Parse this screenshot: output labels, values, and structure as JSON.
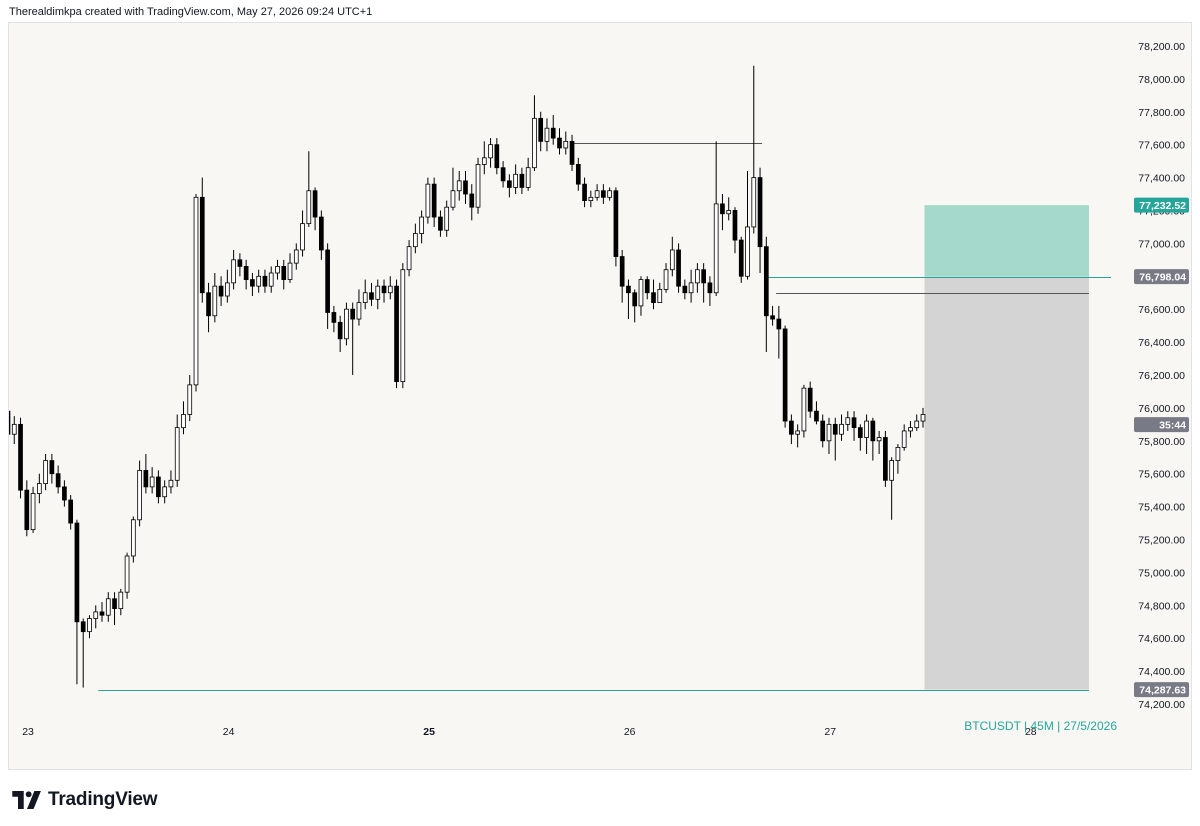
{
  "header": {
    "text": "Therealdimkpa created with TradingView.com, May 27, 2026 09:24 UTC+1"
  },
  "brand": {
    "name": "TradingView",
    "logo_icon": "tradingview-logo-icon"
  },
  "colors": {
    "up": "#ffffff",
    "down": "#000000",
    "wick": "#000000",
    "profit_zone": "#a5d9cc",
    "stop_zone": "#d4d4d4",
    "accent": "#26a69a",
    "price_badge_gray": "#787b86",
    "target_badge": "#26a69a",
    "background": "#f8f7f3"
  },
  "chart_data": {
    "type": "candlestick",
    "symbol_caption": "BTCUSDT | 45M | 27/5/2026",
    "y_range": [
      74100,
      78300
    ],
    "y_ticks": [
      74200,
      74400,
      74600,
      74800,
      75000,
      75200,
      75400,
      75600,
      75800,
      76000,
      76200,
      76400,
      76600,
      76800,
      77000,
      77200,
      77400,
      77600,
      77800,
      78000,
      78200
    ],
    "y_tick_labels": [
      "74,200.00",
      "74,400.00",
      "74,600.00",
      "74,800.00",
      "75,000.00",
      "75,200.00",
      "75,400.00",
      "75,600.00",
      "75,800.00",
      "76,000.00",
      "76,200.00",
      "76,400.00",
      "76,600.00",
      "76,800.00",
      "77,000.00",
      "77,200.00",
      "77,400.00",
      "77,600.00",
      "77,800.00",
      "78,000.00",
      "78,200.00"
    ],
    "x_range": [
      22.9,
      28.4
    ],
    "x_ticks": [
      {
        "day": 23,
        "label": "23",
        "bold": false
      },
      {
        "day": 24,
        "label": "24",
        "bold": false
      },
      {
        "day": 25,
        "label": "25",
        "bold": true
      },
      {
        "day": 26,
        "label": "26",
        "bold": false
      },
      {
        "day": 27,
        "label": "27",
        "bold": false
      },
      {
        "day": 28,
        "label": "28",
        "bold": false
      }
    ],
    "candles_start_day": 22.9,
    "candles_per_day": 32,
    "candles": [
      [
        75980,
        75840,
        76050,
        75780
      ],
      [
        75840,
        75900,
        75950,
        75780
      ],
      [
        75900,
        75500,
        75940,
        75450
      ],
      [
        75500,
        75260,
        75560,
        75220
      ],
      [
        75260,
        75480,
        75520,
        75240
      ],
      [
        75480,
        75540,
        75600,
        75420
      ],
      [
        75540,
        75680,
        75720,
        75500
      ],
      [
        75680,
        75600,
        75720,
        75540
      ],
      [
        75600,
        75520,
        75650,
        75480
      ],
      [
        75520,
        75440,
        75560,
        75400
      ],
      [
        75440,
        75300,
        75470,
        75260
      ],
      [
        75300,
        74700,
        75320,
        74320
      ],
      [
        74700,
        74640,
        74720,
        74300
      ],
      [
        74640,
        74720,
        74740,
        74600
      ],
      [
        74720,
        74760,
        74800,
        74660
      ],
      [
        74760,
        74740,
        74820,
        74700
      ],
      [
        74740,
        74840,
        74880,
        74700
      ],
      [
        74840,
        74780,
        74880,
        74680
      ],
      [
        74780,
        74880,
        74900,
        74740
      ],
      [
        74880,
        75100,
        75120,
        74840
      ],
      [
        75100,
        75320,
        75340,
        75060
      ],
      [
        75320,
        75620,
        75680,
        75280
      ],
      [
        75620,
        75520,
        75720,
        75480
      ],
      [
        75520,
        75580,
        75640,
        75480
      ],
      [
        75580,
        75460,
        75620,
        75420
      ],
      [
        75460,
        75520,
        75560,
        75420
      ],
      [
        75520,
        75560,
        75620,
        75480
      ],
      [
        75560,
        75880,
        75960,
        75520
      ],
      [
        75880,
        75960,
        76040,
        75840
      ],
      [
        75960,
        76140,
        76200,
        75920
      ],
      [
        76140,
        77280,
        77300,
        76100
      ],
      [
        77280,
        76700,
        77400,
        76640
      ],
      [
        76700,
        76560,
        76760,
        76460
      ],
      [
        76560,
        76740,
        76820,
        76520
      ],
      [
        76740,
        76680,
        76800,
        76620
      ],
      [
        76680,
        76760,
        76840,
        76640
      ],
      [
        76760,
        76900,
        76960,
        76720
      ],
      [
        76900,
        76860,
        76940,
        76800
      ],
      [
        76860,
        76780,
        76900,
        76720
      ],
      [
        76780,
        76740,
        76820,
        76680
      ],
      [
        76740,
        76800,
        76840,
        76700
      ],
      [
        76800,
        76740,
        76840,
        76700
      ],
      [
        76740,
        76820,
        76860,
        76700
      ],
      [
        76820,
        76860,
        76900,
        76780
      ],
      [
        76860,
        76780,
        76900,
        76720
      ],
      [
        76780,
        76880,
        76940,
        76760
      ],
      [
        76880,
        76960,
        77000,
        76840
      ],
      [
        76960,
        77120,
        77200,
        76920
      ],
      [
        77120,
        77320,
        77560,
        77100
      ],
      [
        77320,
        77160,
        77340,
        77080
      ],
      [
        77160,
        76960,
        77200,
        76900
      ],
      [
        76960,
        76580,
        77000,
        76480
      ],
      [
        76580,
        76520,
        76620,
        76460
      ],
      [
        76520,
        76420,
        76560,
        76340
      ],
      [
        76420,
        76600,
        76640,
        76380
      ],
      [
        76600,
        76540,
        76640,
        76200
      ],
      [
        76540,
        76640,
        76720,
        76500
      ],
      [
        76640,
        76700,
        76780,
        76600
      ],
      [
        76700,
        76660,
        76760,
        76620
      ],
      [
        76660,
        76740,
        76780,
        76600
      ],
      [
        76740,
        76700,
        76780,
        76640
      ],
      [
        76700,
        76740,
        76800,
        76660
      ],
      [
        76740,
        76160,
        76780,
        76120
      ],
      [
        76160,
        76840,
        76880,
        76120
      ],
      [
        76840,
        76980,
        77020,
        76800
      ],
      [
        76980,
        77060,
        77120,
        76940
      ],
      [
        77060,
        77160,
        77200,
        77000
      ],
      [
        77160,
        77360,
        77400,
        77120
      ],
      [
        77360,
        77160,
        77400,
        77100
      ],
      [
        77160,
        77080,
        77200,
        77040
      ],
      [
        77080,
        77220,
        77260,
        77040
      ],
      [
        77220,
        77320,
        77460,
        77200
      ],
      [
        77320,
        77380,
        77440,
        77260
      ],
      [
        77380,
        77300,
        77440,
        77240
      ],
      [
        77300,
        77220,
        77360,
        77140
      ],
      [
        77220,
        77480,
        77520,
        77180
      ],
      [
        77480,
        77520,
        77620,
        77420
      ],
      [
        77520,
        77600,
        77640,
        77460
      ],
      [
        77600,
        77460,
        77640,
        77420
      ],
      [
        77460,
        77380,
        77500,
        77340
      ],
      [
        77380,
        77340,
        77420,
        77280
      ],
      [
        77340,
        77420,
        77480,
        77300
      ],
      [
        77420,
        77340,
        77460,
        77300
      ],
      [
        77340,
        77460,
        77520,
        77320
      ],
      [
        77460,
        77760,
        77900,
        77440
      ],
      [
        77760,
        77620,
        77800,
        77560
      ],
      [
        77620,
        77700,
        77760,
        77560
      ],
      [
        77700,
        77640,
        77780,
        77600
      ],
      [
        77640,
        77580,
        77700,
        77540
      ],
      [
        77580,
        77620,
        77680,
        77540
      ],
      [
        77620,
        77480,
        77660,
        77440
      ],
      [
        77480,
        77360,
        77520,
        77320
      ],
      [
        77360,
        77260,
        77400,
        77220
      ],
      [
        77260,
        77280,
        77320,
        77220
      ],
      [
        77280,
        77320,
        77360,
        77260
      ],
      [
        77320,
        77280,
        77360,
        77240
      ],
      [
        77280,
        77320,
        77340,
        77260
      ],
      [
        77320,
        76920,
        77340,
        76860
      ],
      [
        76920,
        76740,
        76960,
        76640
      ],
      [
        76740,
        76700,
        76780,
        76540
      ],
      [
        76700,
        76620,
        76720,
        76520
      ],
      [
        76620,
        76780,
        76800,
        76560
      ],
      [
        76780,
        76700,
        76800,
        76660
      ],
      [
        76700,
        76640,
        76780,
        76600
      ],
      [
        76640,
        76720,
        76760,
        76640
      ],
      [
        76720,
        76840,
        76880,
        76700
      ],
      [
        76840,
        76960,
        77040,
        76800
      ],
      [
        76960,
        76740,
        77000,
        76700
      ],
      [
        76740,
        76700,
        76780,
        76660
      ],
      [
        76700,
        76760,
        76840,
        76640
      ],
      [
        76760,
        76840,
        76880,
        76700
      ],
      [
        76840,
        76760,
        76880,
        76640
      ],
      [
        76760,
        76700,
        76800,
        76620
      ],
      [
        76700,
        77240,
        77620,
        76680
      ],
      [
        77240,
        77180,
        77300,
        77080
      ],
      [
        77180,
        77200,
        77280,
        77140
      ],
      [
        77200,
        77020,
        77220,
        76940
      ],
      [
        77020,
        76800,
        77040,
        76760
      ],
      [
        76800,
        77100,
        77440,
        76780
      ],
      [
        77100,
        77400,
        78080,
        77060
      ],
      [
        77400,
        76980,
        77460,
        76820
      ],
      [
        76980,
        76560,
        77040,
        76340
      ],
      [
        76560,
        76540,
        76620,
        76500
      ],
      [
        76540,
        76480,
        76620,
        76300
      ],
      [
        76480,
        75920,
        76500,
        75880
      ],
      [
        75920,
        75840,
        75960,
        75780
      ],
      [
        75840,
        75860,
        75900,
        75760
      ],
      [
        75860,
        76120,
        76140,
        75820
      ],
      [
        76120,
        75980,
        76160,
        75940
      ],
      [
        75980,
        75920,
        76040,
        75900
      ],
      [
        75920,
        75800,
        75960,
        75760
      ],
      [
        75800,
        75900,
        75940,
        75720
      ],
      [
        75900,
        75840,
        75940,
        75680
      ],
      [
        75840,
        75900,
        75960,
        75800
      ],
      [
        75900,
        75940,
        75980,
        75860
      ],
      [
        75940,
        75880,
        75980,
        75800
      ],
      [
        75880,
        75820,
        75900,
        75740
      ],
      [
        75820,
        75920,
        75960,
        75720
      ],
      [
        75920,
        75800,
        75940,
        75680
      ],
      [
        75800,
        75820,
        75860,
        75720
      ],
      [
        75820,
        75560,
        75860,
        75520
      ],
      [
        75560,
        75680,
        75700,
        75320
      ],
      [
        75680,
        75760,
        75780,
        75600
      ],
      [
        75760,
        75860,
        75900,
        75740
      ],
      [
        75860,
        75880,
        75920,
        75820
      ],
      [
        75880,
        75920,
        75960,
        75860
      ],
      [
        75920,
        75960,
        76000,
        75880
      ]
    ],
    "position": {
      "type": "long",
      "entry": 76798.04,
      "target": 77232.52,
      "stop": 74287.63,
      "start_day": 27.47,
      "end_day": 28.29
    },
    "horizontal_levels": [
      {
        "price": 77610,
        "from_day": 25.72,
        "to_day": 26.66,
        "color": "#555555"
      },
      {
        "price": 76700,
        "from_day": 26.73,
        "to_day": 28.29,
        "color": "#555555"
      },
      {
        "price": 74287.63,
        "from_day": 23.35,
        "to_day": 28.29,
        "color": "#26a69a"
      },
      {
        "price": 76798.04,
        "from_day": 26.68,
        "to_day": 28.4,
        "color": "#26a69a"
      }
    ],
    "price_labels": [
      {
        "price": 77232.52,
        "text": "77,232.52",
        "color": "#26a69a"
      },
      {
        "price": 76798.04,
        "text": "76,798.04",
        "color": "#787b86"
      },
      {
        "price": 75898,
        "text": "35:44",
        "color": "#787b86"
      },
      {
        "price": 74287.63,
        "text": "74,287.63",
        "color": "#787b86"
      }
    ]
  }
}
